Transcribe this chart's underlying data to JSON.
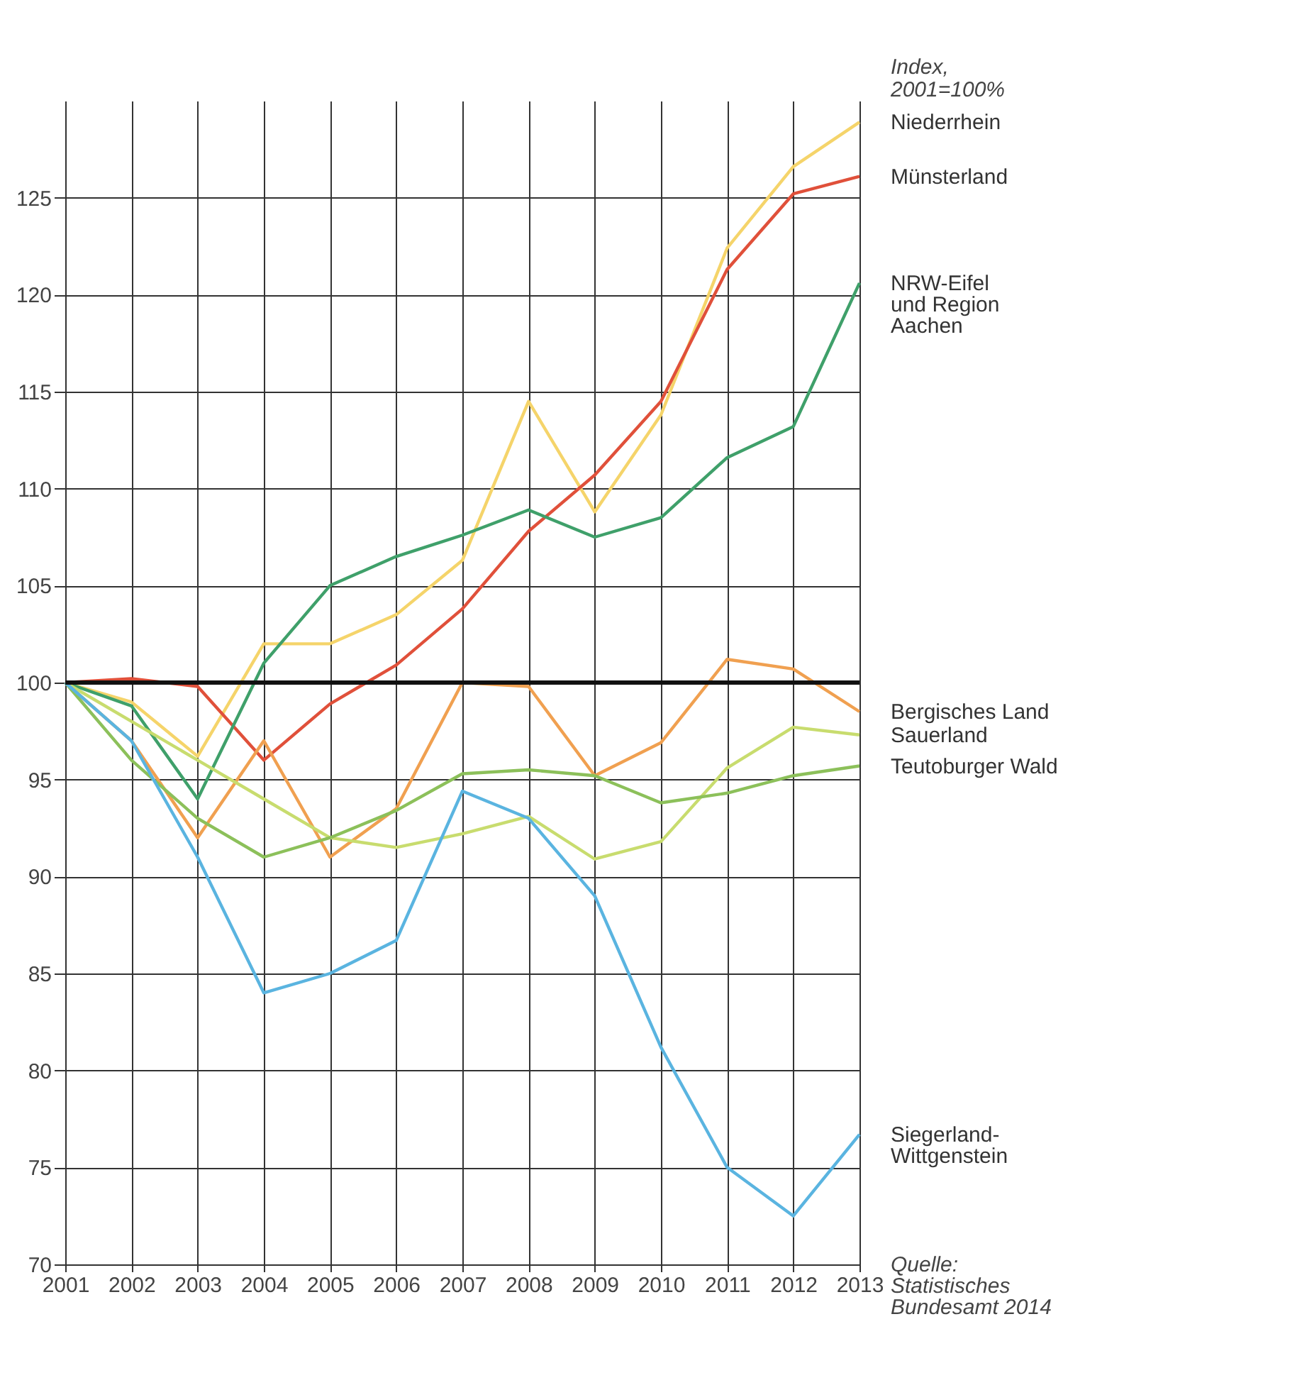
{
  "chart_data": {
    "type": "line",
    "ylabel": "Index, 2001=100%",
    "x": [
      2001,
      2002,
      2003,
      2004,
      2005,
      2006,
      2007,
      2008,
      2009,
      2010,
      2011,
      2012,
      2013
    ],
    "series": [
      {
        "name": "Niederrhein",
        "color": "#f5d46a",
        "values": [
          100,
          99,
          96.2,
          102,
          102,
          103.5,
          106.3,
          114.5,
          108.8,
          113.8,
          122.4,
          126.6,
          128.9
        ]
      },
      {
        "name": "Münsterland",
        "color": "#e0503a",
        "values": [
          100,
          100.2,
          99.8,
          96,
          98.9,
          100.9,
          103.8,
          107.8,
          110.7,
          114.5,
          121.3,
          125.2,
          126.1
        ]
      },
      {
        "name": "NRW-Eifel und Region Aachen",
        "color": "#3fa06a",
        "values": [
          100,
          98.8,
          94,
          101,
          105,
          106.5,
          107.6,
          108.9,
          107.5,
          108.5,
          111.6,
          113.2,
          120.6
        ]
      },
      {
        "name": "Bergisches Land",
        "color": "#f0a050",
        "values": [
          100,
          97,
          92,
          97,
          91,
          93.5,
          100,
          99.8,
          95.2,
          96.9,
          101.2,
          100.7,
          98.5
        ]
      },
      {
        "name": "Sauerland",
        "color": "#c8dc6e",
        "values": [
          100,
          98,
          96,
          94,
          92,
          91.5,
          92.2,
          93.1,
          90.9,
          91.8,
          95.6,
          97.7,
          97.3
        ]
      },
      {
        "name": "Teutoburger Wald",
        "color": "#8cc05a",
        "values": [
          100,
          96,
          93,
          91,
          92,
          93.4,
          95.3,
          95.5,
          95.2,
          93.8,
          94.3,
          95.2,
          95.7
        ]
      },
      {
        "name": "Siegerland-Wittgenstein",
        "color": "#5ab4e0",
        "values": [
          100,
          97,
          91,
          84,
          85,
          86.7,
          94.4,
          93,
          89,
          81.2,
          75,
          72.5,
          76.7
        ]
      }
    ],
    "xlim": [
      2001,
      2013
    ],
    "xticks": [
      2001,
      2002,
      2003,
      2004,
      2005,
      2006,
      2007,
      2008,
      2009,
      2010,
      2011,
      2012,
      2013
    ],
    "ylim": [
      70,
      130
    ],
    "yticks": [
      70,
      75,
      80,
      85,
      90,
      95,
      100,
      105,
      110,
      115,
      120,
      125
    ],
    "ref_lines": [
      {
        "axis": "y",
        "value": 100,
        "color": "#111111"
      }
    ],
    "annotations": [
      "Quelle: Statistisches Bundesamt 2014"
    ],
    "grid": true,
    "marker": "none",
    "line_style": "solid"
  }
}
